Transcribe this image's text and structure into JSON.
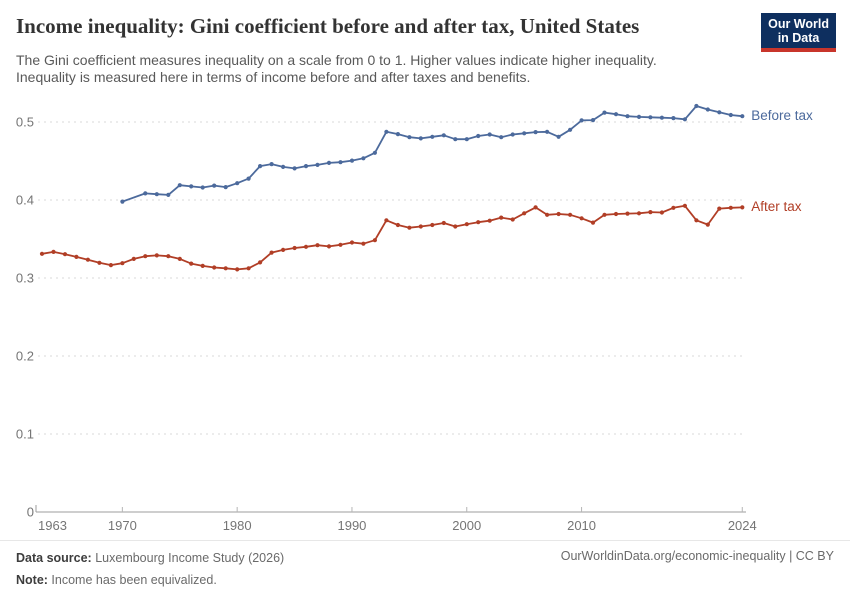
{
  "header": {
    "title": "Income inequality: Gini coefficient before and after tax, United States",
    "subtitle_line1": "The Gini coefficient measures inequality on a scale from 0 to 1. Higher values indicate higher inequality.",
    "subtitle_line2": "Inequality is measured here in terms of income before and after taxes and benefits."
  },
  "logo": {
    "line1": "Our World",
    "line2": "in Data",
    "bg_color": "#0e2f5f",
    "bar_color": "#c8352b"
  },
  "chart_data": {
    "type": "line",
    "title": "Income inequality: Gini coefficient before and after tax, United States",
    "xlabel": "",
    "ylabel": "",
    "x_ticks": [
      1963,
      1970,
      1980,
      1990,
      2000,
      2010,
      2024
    ],
    "y_ticks": [
      0,
      0.1,
      0.2,
      0.3,
      0.4,
      0.5
    ],
    "xlim": [
      1963,
      2024
    ],
    "ylim": [
      0,
      0.56
    ],
    "grid": "horizontal-dashed",
    "legend_position": "right-end-labels",
    "series": [
      {
        "name": "Before tax",
        "color": "#4c6a9c",
        "points": [
          [
            1970,
            0.398
          ],
          [
            1972,
            0.4085
          ],
          [
            1973,
            0.4075
          ],
          [
            1974,
            0.4065
          ],
          [
            1975,
            0.419
          ],
          [
            1976,
            0.4175
          ],
          [
            1977,
            0.416
          ],
          [
            1978,
            0.4185
          ],
          [
            1979,
            0.4165
          ],
          [
            1980,
            0.4215
          ],
          [
            1981,
            0.4275
          ],
          [
            1982,
            0.4435
          ],
          [
            1983,
            0.446
          ],
          [
            1984,
            0.4425
          ],
          [
            1985,
            0.4405
          ],
          [
            1986,
            0.4435
          ],
          [
            1987,
            0.445
          ],
          [
            1988,
            0.4475
          ],
          [
            1989,
            0.4485
          ],
          [
            1990,
            0.4505
          ],
          [
            1991,
            0.4535
          ],
          [
            1992,
            0.4605
          ],
          [
            1993,
            0.4875
          ],
          [
            1994,
            0.4845
          ],
          [
            1995,
            0.4805
          ],
          [
            1996,
            0.479
          ],
          [
            1997,
            0.481
          ],
          [
            1998,
            0.483
          ],
          [
            1999,
            0.478
          ],
          [
            2000,
            0.478
          ],
          [
            2001,
            0.482
          ],
          [
            2002,
            0.484
          ],
          [
            2003,
            0.4805
          ],
          [
            2004,
            0.484
          ],
          [
            2005,
            0.4855
          ],
          [
            2006,
            0.487
          ],
          [
            2007,
            0.4875
          ],
          [
            2008,
            0.481
          ],
          [
            2009,
            0.49
          ],
          [
            2010,
            0.502
          ],
          [
            2011,
            0.5025
          ],
          [
            2012,
            0.512
          ],
          [
            2013,
            0.51
          ],
          [
            2014,
            0.5075
          ],
          [
            2015,
            0.5065
          ],
          [
            2016,
            0.506
          ],
          [
            2017,
            0.5055
          ],
          [
            2018,
            0.505
          ],
          [
            2019,
            0.5035
          ],
          [
            2020,
            0.5205
          ],
          [
            2021,
            0.516
          ],
          [
            2022,
            0.5125
          ],
          [
            2023,
            0.509
          ],
          [
            2024,
            0.5075
          ]
        ]
      },
      {
        "name": "After tax",
        "color": "#b13e26",
        "points": [
          [
            1963,
            0.331
          ],
          [
            1964,
            0.3335
          ],
          [
            1965,
            0.3305
          ],
          [
            1966,
            0.327
          ],
          [
            1967,
            0.3235
          ],
          [
            1968,
            0.3195
          ],
          [
            1969,
            0.3165
          ],
          [
            1970,
            0.319
          ],
          [
            1971,
            0.3245
          ],
          [
            1972,
            0.328
          ],
          [
            1973,
            0.329
          ],
          [
            1974,
            0.328
          ],
          [
            1975,
            0.3245
          ],
          [
            1976,
            0.3185
          ],
          [
            1977,
            0.3155
          ],
          [
            1978,
            0.3135
          ],
          [
            1979,
            0.3125
          ],
          [
            1980,
            0.311
          ],
          [
            1981,
            0.3125
          ],
          [
            1982,
            0.32
          ],
          [
            1983,
            0.3325
          ],
          [
            1984,
            0.336
          ],
          [
            1985,
            0.3385
          ],
          [
            1986,
            0.34
          ],
          [
            1987,
            0.342
          ],
          [
            1988,
            0.3405
          ],
          [
            1989,
            0.3425
          ],
          [
            1990,
            0.3455
          ],
          [
            1991,
            0.344
          ],
          [
            1992,
            0.3485
          ],
          [
            1993,
            0.374
          ],
          [
            1994,
            0.368
          ],
          [
            1995,
            0.3645
          ],
          [
            1996,
            0.366
          ],
          [
            1997,
            0.368
          ],
          [
            1998,
            0.3705
          ],
          [
            1999,
            0.366
          ],
          [
            2000,
            0.369
          ],
          [
            2001,
            0.3715
          ],
          [
            2002,
            0.3735
          ],
          [
            2003,
            0.3775
          ],
          [
            2004,
            0.375
          ],
          [
            2005,
            0.383
          ],
          [
            2006,
            0.3905
          ],
          [
            2007,
            0.381
          ],
          [
            2008,
            0.382
          ],
          [
            2009,
            0.381
          ],
          [
            2010,
            0.3765
          ],
          [
            2011,
            0.371
          ],
          [
            2012,
            0.381
          ],
          [
            2013,
            0.382
          ],
          [
            2014,
            0.3825
          ],
          [
            2015,
            0.383
          ],
          [
            2016,
            0.3845
          ],
          [
            2017,
            0.384
          ],
          [
            2018,
            0.39
          ],
          [
            2019,
            0.3925
          ],
          [
            2020,
            0.374
          ],
          [
            2021,
            0.3685
          ],
          [
            2022,
            0.389
          ],
          [
            2023,
            0.39
          ],
          [
            2024,
            0.3905
          ]
        ]
      }
    ]
  },
  "footer": {
    "data_source_label": "Data source:",
    "data_source_value": " Luxembourg Income Study (2026)",
    "note_label": "Note:",
    "note_value": " Income has been equivalized.",
    "link": "OurWorldinData.org/economic-inequality | CC BY"
  }
}
